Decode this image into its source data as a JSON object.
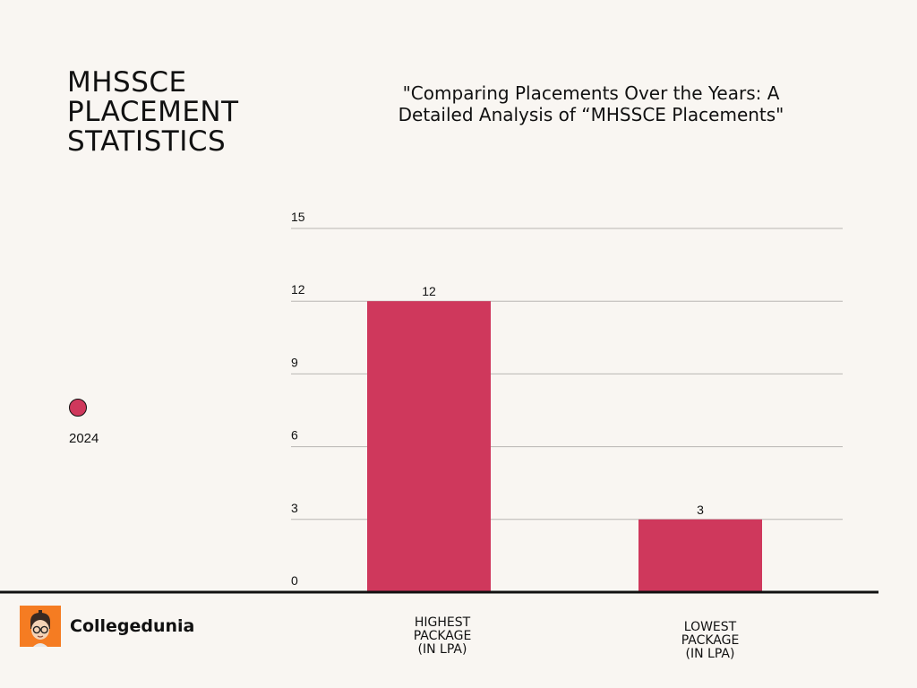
{
  "header": {
    "title_lines": [
      "MHSSCE",
      "PLACEMENT",
      "STATISTICS"
    ],
    "subtitle_lines": [
      "\"Comparing Placements Over the Years: A",
      "Detailed Analysis of “MHSSCE Placements\""
    ]
  },
  "legend": {
    "label": "2024",
    "color": "#cf385c"
  },
  "brand": {
    "name": "Collegedunia",
    "logo_color": "#f57c22"
  },
  "chart_data": {
    "type": "bar",
    "categories": [
      [
        "HIGHEST",
        "PACKAGE",
        "(IN LPA)"
      ],
      [
        "LOWEST",
        "PACKAGE",
        "(IN LPA)"
      ]
    ],
    "series": [
      {
        "name": "2024",
        "values": [
          12,
          3
        ],
        "color": "#cf385c"
      }
    ],
    "data_labels": [
      "12",
      "3"
    ],
    "yticks": [
      0,
      3,
      6,
      9,
      12,
      15
    ],
    "ylim": [
      0,
      15
    ],
    "grid": true,
    "legend_position": "left"
  }
}
